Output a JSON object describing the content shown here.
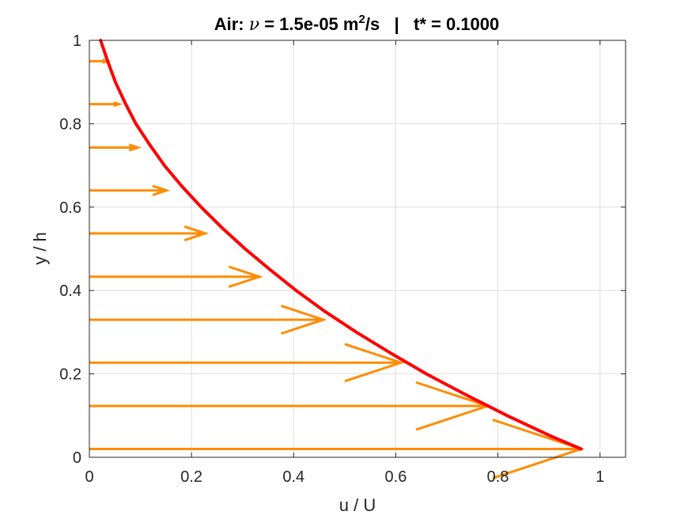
{
  "chart_data": {
    "type": "line",
    "title": {
      "prefix": "Air: ",
      "symbol": "ν",
      "middle": " = 1.5e-05 m",
      "superscript": "2",
      "suffix": "/s   |   t* = 0.1000"
    },
    "xlabel": "u / U",
    "ylabel": "y / h",
    "xlim": [
      0,
      1.05
    ],
    "ylim": [
      0,
      1
    ],
    "xticks": [
      0,
      0.2,
      0.4,
      0.6,
      0.8,
      1
    ],
    "xtick_labels": [
      "0",
      "0.2",
      "0.4",
      "0.6",
      "0.8",
      "1"
    ],
    "yticks": [
      0,
      0.2,
      0.4,
      0.6,
      0.8,
      1
    ],
    "ytick_labels": [
      "0",
      "0.2",
      "0.4",
      "0.6",
      "0.8",
      "1"
    ],
    "grid": true,
    "profile": {
      "description_color": "#ff0000",
      "y": [
        0.02,
        0.05,
        0.1,
        0.15,
        0.2,
        0.25,
        0.3,
        0.35,
        0.4,
        0.45,
        0.5,
        0.55,
        0.6,
        0.65,
        0.7,
        0.75,
        0.8,
        0.85,
        0.9,
        0.95,
        1.0
      ],
      "x": [
        0.963,
        0.905,
        0.818,
        0.737,
        0.66,
        0.59,
        0.523,
        0.461,
        0.405,
        0.354,
        0.305,
        0.26,
        0.219,
        0.181,
        0.147,
        0.118,
        0.091,
        0.07,
        0.051,
        0.036,
        0.022
      ]
    },
    "arrows": {
      "y": [
        0.02,
        0.123,
        0.227,
        0.33,
        0.433,
        0.537,
        0.64,
        0.743,
        0.847,
        0.95
      ],
      "u": [
        0.963,
        0.78,
        0.61,
        0.458,
        0.333,
        0.227,
        0.151,
        0.095,
        0.058,
        0.035
      ]
    },
    "colors": {
      "profile": "#ff0000",
      "arrows": "#ff8c00",
      "grid": "#dfdfdf",
      "axes": "#262626"
    }
  }
}
